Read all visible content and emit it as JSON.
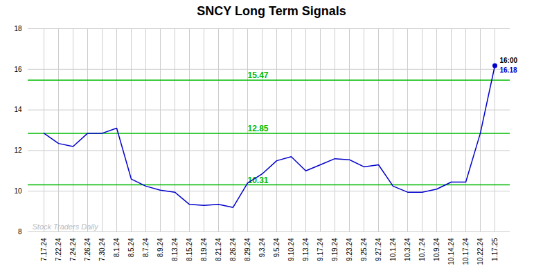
{
  "chart_data": {
    "type": "line",
    "title": "SNCY Long Term Signals",
    "categories": [
      "7.17.24",
      "7.22.24",
      "7.24.24",
      "7.26.24",
      "7.30.24",
      "8.1.24",
      "8.5.24",
      "8.7.24",
      "8.9.24",
      "8.13.24",
      "8.15.24",
      "8.19.24",
      "8.21.24",
      "8.26.24",
      "8.29.24",
      "9.3.24",
      "9.5.24",
      "9.10.24",
      "9.13.24",
      "9.17.24",
      "9.19.24",
      "9.23.24",
      "9.25.24",
      "9.27.24",
      "10.1.24",
      "10.3.24",
      "10.7.24",
      "10.9.24",
      "10.14.24",
      "10.17.24",
      "10.22.24",
      "1.17.25"
    ],
    "values": [
      12.85,
      12.35,
      12.2,
      12.85,
      12.85,
      13.1,
      10.6,
      10.25,
      10.05,
      9.95,
      9.35,
      9.3,
      9.35,
      9.2,
      10.4,
      10.85,
      11.5,
      11.7,
      11.0,
      11.3,
      11.6,
      11.55,
      11.2,
      11.3,
      10.25,
      9.95,
      9.95,
      10.1,
      10.45,
      10.45,
      12.85,
      16.18
    ],
    "color": "#0000cc",
    "ylim": [
      8,
      18
    ],
    "yticks": [
      8,
      10,
      12,
      14,
      16,
      18
    ],
    "grid": true,
    "reference_lines": [
      {
        "value": 10.31,
        "label": "10.31",
        "color": "#00bb00"
      },
      {
        "value": 12.85,
        "label": "12.85",
        "color": "#00bb00"
      },
      {
        "value": 15.47,
        "label": "15.47",
        "color": "#00bb00"
      }
    ],
    "annotations": [
      {
        "text": "16:00",
        "x": "1.17.25",
        "y": 16.18,
        "color": "#000000"
      },
      {
        "text": "16.18",
        "x": "1.17.25",
        "y": 16.18,
        "color": "#0000cc"
      },
      {
        "text": "Stock Traders Daily",
        "color": "#bbbbbb"
      }
    ]
  }
}
